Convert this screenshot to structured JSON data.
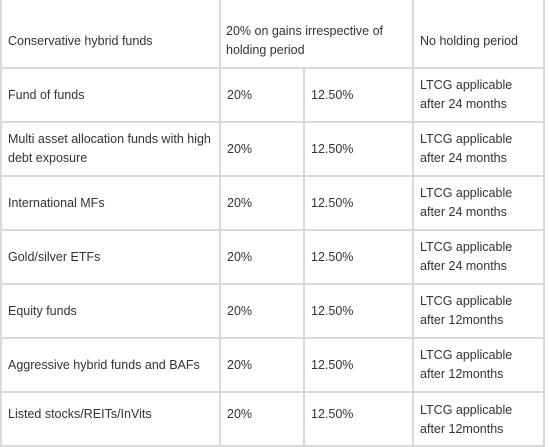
{
  "table": {
    "rows": [
      {
        "fund": "Conservative hybrid funds",
        "tax_merged": "20% on gains irrespective of holding period",
        "condition": "No holding period"
      },
      {
        "fund": "Fund of funds",
        "old_rate": "20%",
        "new_rate": "12.50%",
        "condition": "LTCG applicable after 24 months"
      },
      {
        "fund": "Multi asset allocation funds with high debt exposure",
        "old_rate": "20%",
        "new_rate": "12.50%",
        "condition": "LTCG applicable after 24 months"
      },
      {
        "fund": "International MFs",
        "old_rate": "20%",
        "new_rate": "12.50%",
        "condition": "LTCG applicable after 24 months"
      },
      {
        "fund": "Gold/silver ETFs",
        "old_rate": "20%",
        "new_rate": "12.50%",
        "condition": "LTCG applicable after 24 months"
      },
      {
        "fund": "Equity funds",
        "old_rate": "20%",
        "new_rate": "12.50%",
        "condition": "LTCG applicable after 12months"
      },
      {
        "fund": "Aggressive hybrid funds and BAFs",
        "old_rate": "20%",
        "new_rate": "12.50%",
        "condition": "LTCG applicable after 12months"
      },
      {
        "fund": "Listed stocks/REITs/InVits",
        "old_rate": "20%",
        "new_rate": "12.50%",
        "condition": "LTCG applicable after 12months"
      }
    ]
  }
}
